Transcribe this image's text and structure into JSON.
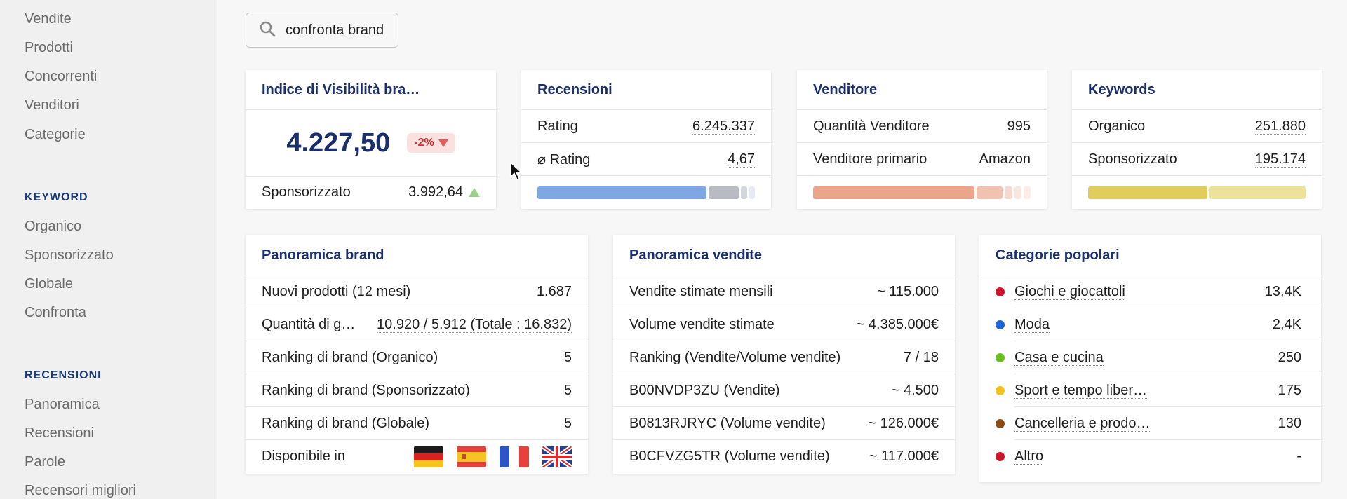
{
  "sidebar": {
    "items_top": [
      "Vendite",
      "Prodotti",
      "Concorrenti",
      "Venditori",
      "Categorie"
    ],
    "keyword_section": "KEYWORD",
    "keyword_items": [
      "Organico",
      "Sponsorizzato",
      "Globale",
      "Confronta"
    ],
    "reviews_section": "RECENSIONI",
    "reviews_items": [
      "Panoramica",
      "Recensioni",
      "Parole",
      "Recensori migliori"
    ]
  },
  "search": {
    "value": "confronta brand",
    "icon": "search-icon"
  },
  "visibility_card": {
    "title": "Indice di Visibilità bra…",
    "value": "4.227,50",
    "badge": "-2%",
    "row_label": "Sponsorizzato",
    "row_value": "3.992,64"
  },
  "reviews_card": {
    "title": "Recensioni",
    "rows": [
      {
        "label": "Rating",
        "value": "6.245.337"
      },
      {
        "label": "⌀ Rating",
        "value": "4,67"
      }
    ],
    "bar_colors": [
      "#7ea7e3",
      "#b8bcc2",
      "#d3d6db",
      "#e4ebf5"
    ]
  },
  "seller_card": {
    "title": "Venditore",
    "rows": [
      {
        "label": "Quantità Venditore",
        "value": "995"
      },
      {
        "label": "Venditore primario",
        "value": "Amazon"
      }
    ],
    "bar_colors": [
      "#eba58a",
      "#f2c2b1",
      "#f6d9ce",
      "#f9e6df",
      "#fbeee9"
    ]
  },
  "keywords_card": {
    "title": "Keywords",
    "rows": [
      {
        "label": "Organico",
        "value": "251.880"
      },
      {
        "label": "Sponsorizzato",
        "value": "195.174"
      }
    ],
    "bar_colors": [
      "#e0cd5e",
      "#ece29a"
    ]
  },
  "brand_overview": {
    "title": "Panoramica brand",
    "rows": [
      {
        "label": "Nuovi prodotti (12 mesi)",
        "value": "1.687"
      },
      {
        "label": "Quantità di g…",
        "value": "10.920 / 5.912 (Totale : 16.832)"
      },
      {
        "label": "Ranking di brand (Organico)",
        "value": "5"
      },
      {
        "label": "Ranking di brand (Sponsorizzato)",
        "value": "5"
      },
      {
        "label": "Ranking di brand (Globale)",
        "value": "5"
      }
    ],
    "available_label": "Disponibile in",
    "flags": [
      "flag-de-icon",
      "flag-es-icon",
      "flag-fr-icon",
      "flag-uk-icon"
    ]
  },
  "sales_overview": {
    "title": "Panoramica vendite",
    "rows": [
      {
        "label": "Vendite stimate mensili",
        "value": "~ 115.000"
      },
      {
        "label": "Volume vendite stimate",
        "value": "~ 4.385.000€"
      },
      {
        "label": "Ranking (Vendite/Volume vendite)",
        "value": "7 / 18"
      },
      {
        "label": "B00NVDP3ZU (Vendite)",
        "value": "~ 4.500"
      },
      {
        "label": "B0813RJRYC (Volume vendite)",
        "value": "~ 126.000€"
      },
      {
        "label": "B0CFVZG5TR (Volume vendite)",
        "value": "~ 117.000€"
      }
    ]
  },
  "popular_categories": {
    "title": "Categorie popolari",
    "rows": [
      {
        "label": "Giochi e giocattoli",
        "value": "13,4K",
        "color": "#d0112b"
      },
      {
        "label": "Moda",
        "value": "2,4K",
        "color": "#1f63d6"
      },
      {
        "label": "Casa e cucina",
        "value": "250",
        "color": "#6bbf1f"
      },
      {
        "label": "Sport e tempo liber…",
        "value": "175",
        "color": "#f4c01a"
      },
      {
        "label": "Cancelleria e prodo…",
        "value": "130",
        "color": "#8b4a12"
      },
      {
        "label": "Altro",
        "value": "-",
        "color": "#d0112b"
      }
    ]
  }
}
